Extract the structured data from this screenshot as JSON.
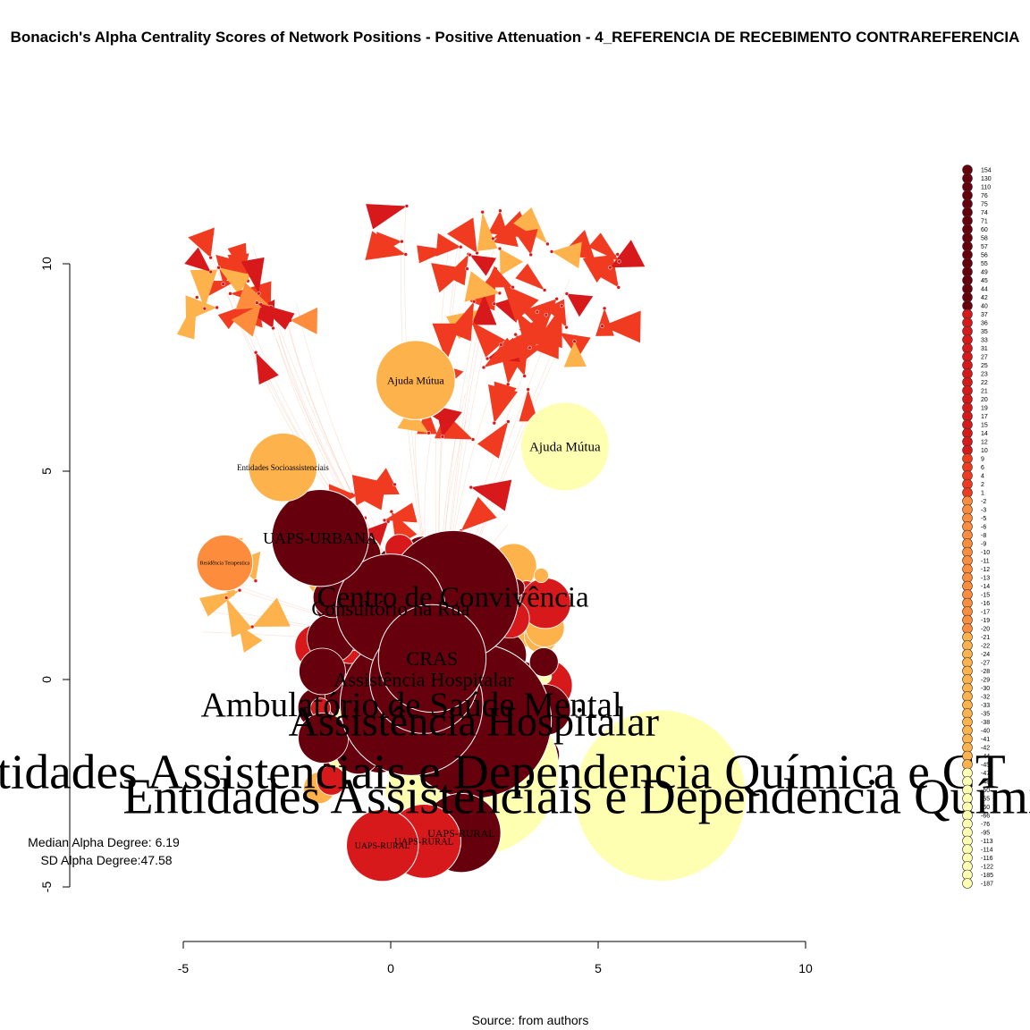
{
  "title": "Bonacich's Alpha Centrality Scores of Network Positions - Positive Attenuation - 4_REFERENCIA DE RECEBIMENTO CONTRAREFERENCIA",
  "source": "Source: from authors",
  "stats": {
    "median": "Median Alpha Degree: 6.19",
    "sd": "SD Alpha Degree:47.58"
  },
  "colors": {
    "dark": "#67000d",
    "red": "#d7191c",
    "orange_red": "#f03b20",
    "orange": "#fd8d3c",
    "gold": "#feb24c",
    "light": "#ffffb2",
    "edge": "#f4a582"
  },
  "chart_data": {
    "type": "scatter",
    "title": "Bonacich's Alpha Centrality Scores of Network Positions - Positive Attenuation - 4_REFERENCIA DE RECEBIMENTO CONTRAREFERENCIA",
    "xlabel": "",
    "ylabel": "",
    "xlim": [
      -5,
      10
    ],
    "ylim": [
      -5,
      10
    ],
    "x_ticks": [
      "-5",
      "0",
      "5",
      "10"
    ],
    "y_ticks": [
      "-5",
      "0",
      "5",
      "10"
    ],
    "grid": false,
    "legend_position": "right",
    "legend_values": [
      "154",
      "130",
      "110",
      "76",
      "75",
      "74",
      "71",
      "60",
      "58",
      "57",
      "56",
      "55",
      "49",
      "45",
      "44",
      "42",
      "40",
      "37",
      "36",
      "35",
      "33",
      "31",
      "27",
      "25",
      "23",
      "22",
      "21",
      "20",
      "19",
      "17",
      "15",
      "14",
      "12",
      "10",
      "9",
      "6",
      "4",
      "2",
      "1",
      "-2",
      "-3",
      "-5",
      "-6",
      "-8",
      "-9",
      "-10",
      "-11",
      "-12",
      "-13",
      "-14",
      "-15",
      "-16",
      "-17",
      "-19",
      "-20",
      "-21",
      "-22",
      "-24",
      "-27",
      "-28",
      "-29",
      "-30",
      "-32",
      "-33",
      "-35",
      "-38",
      "-40",
      "-41",
      "-42",
      "-44",
      "-45",
      "-47",
      "-48",
      "-50",
      "-55",
      "-60",
      "-66",
      "-76",
      "-95",
      "-113",
      "-114",
      "-116",
      "-122",
      "-185",
      "-187"
    ],
    "labeled_nodes": [
      {
        "label": "Entidades Assistenciais e Dependencia Química e CT",
        "x": 6.5,
        "y": -2.8,
        "score": -187
      },
      {
        "label": "Entidades Assistenciais e Dependencia Química e CT",
        "x": 2.0,
        "y": -2.2,
        "score": -185
      },
      {
        "label": "Assistência Hospitalar",
        "x": 2.0,
        "y": -1.0,
        "score": 154
      },
      {
        "label": "Ambulatório de Saúde Mental",
        "x": 0.5,
        "y": -0.6,
        "score": 130
      },
      {
        "label": "Centro de Convivência",
        "x": 1.5,
        "y": 2.0,
        "score": 110
      },
      {
        "label": "Consultório na Rua",
        "x": 0.0,
        "y": 1.7,
        "score": 76
      },
      {
        "label": "Assistência Hospitalar",
        "x": 0.8,
        "y": 0.0,
        "score": 75
      },
      {
        "label": "CRAS",
        "x": 1.0,
        "y": 0.5,
        "score": 74
      },
      {
        "label": "UAPS-URBANA",
        "x": -1.7,
        "y": 3.4,
        "score": 60
      },
      {
        "label": "Ajuda Mútua",
        "x": 4.2,
        "y": 5.6,
        "score": -50
      },
      {
        "label": "Ajuda Mútua",
        "x": 0.6,
        "y": 7.2,
        "score": -40
      },
      {
        "label": "Entidades Socioassistenciais",
        "x": -2.6,
        "y": 5.1,
        "score": -30
      },
      {
        "label": "Residência Terapeutica",
        "x": -4.0,
        "y": 2.8,
        "score": -20
      },
      {
        "label": "UAPS-RURAL",
        "x": 1.7,
        "y": -3.7,
        "score": 40
      },
      {
        "label": "UAPS-RURAL",
        "x": 0.8,
        "y": -3.9,
        "score": 35
      },
      {
        "label": "UAPS-RURAL",
        "x": -0.2,
        "y": -4.0,
        "score": 33
      }
    ]
  }
}
